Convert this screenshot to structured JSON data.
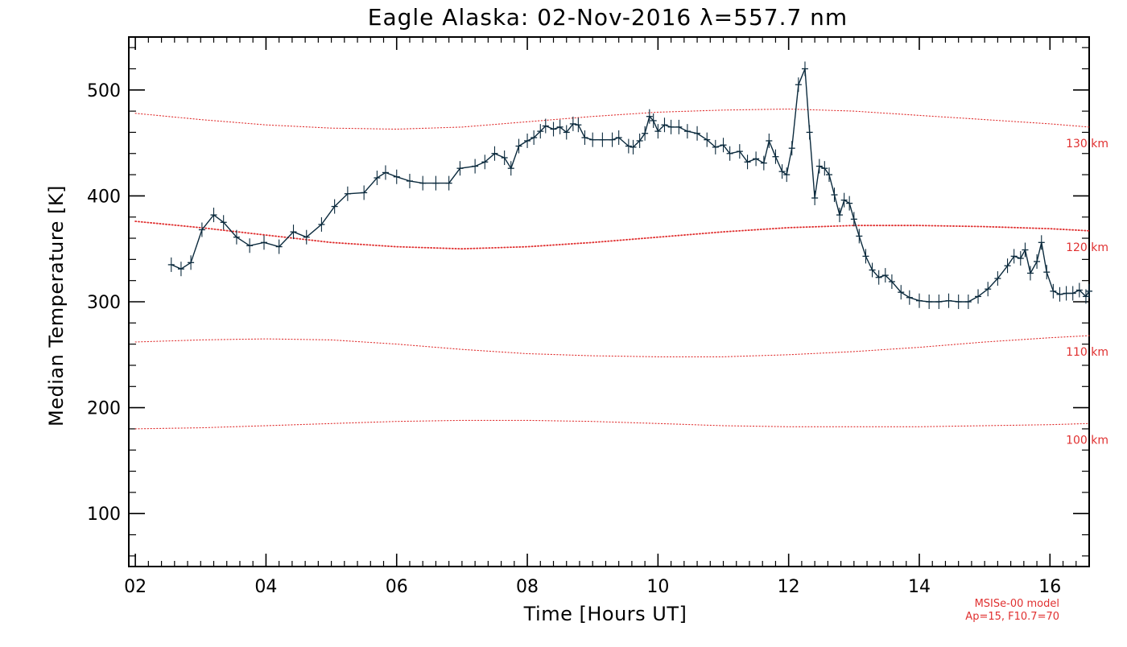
{
  "chart_data": {
    "type": "line",
    "title": "Eagle Alaska: 02-Nov-2016 λ=557.7 nm",
    "xlabel": "Time [Hours UT]",
    "ylabel": "Median Temperature [K]",
    "xlim": [
      1.9,
      16.6
    ],
    "ylim": [
      50,
      550
    ],
    "x_ticks": [
      2,
      4,
      6,
      8,
      10,
      12,
      14,
      16
    ],
    "x_tick_labels": [
      "02",
      "04",
      "06",
      "08",
      "10",
      "12",
      "14",
      "16"
    ],
    "y_ticks": [
      100,
      200,
      300,
      400,
      500
    ],
    "y_tick_labels": [
      "100",
      "200",
      "300",
      "400",
      "500"
    ],
    "colors": {
      "measured": "#0b2a3d",
      "model": "#e03030",
      "axes": "#000000"
    },
    "series": [
      {
        "values": [
          [
            2.55,
            335
          ],
          [
            2.7,
            331
          ],
          [
            2.85,
            337
          ],
          [
            3.02,
            368
          ],
          [
            3.2,
            382
          ],
          [
            3.35,
            375
          ],
          [
            3.55,
            361
          ],
          [
            3.75,
            353
          ],
          [
            3.97,
            356
          ],
          [
            4.2,
            352
          ],
          [
            4.42,
            366
          ],
          [
            4.62,
            361
          ],
          [
            4.85,
            373
          ],
          [
            5.05,
            390
          ],
          [
            5.25,
            402
          ],
          [
            5.5,
            403
          ],
          [
            5.7,
            417
          ],
          [
            5.83,
            422
          ],
          [
            6.0,
            418
          ],
          [
            6.2,
            414
          ],
          [
            6.4,
            412
          ],
          [
            6.6,
            412
          ],
          [
            6.8,
            412
          ],
          [
            6.97,
            426
          ],
          [
            7.2,
            428
          ],
          [
            7.35,
            432
          ],
          [
            7.5,
            440
          ],
          [
            7.65,
            436
          ],
          [
            7.75,
            426
          ],
          [
            7.87,
            447
          ],
          [
            8.0,
            452
          ],
          [
            8.1,
            455
          ],
          [
            8.2,
            461
          ],
          [
            8.28,
            466
          ],
          [
            8.4,
            463
          ],
          [
            8.5,
            465
          ],
          [
            8.6,
            460
          ],
          [
            8.7,
            468
          ],
          [
            8.78,
            467
          ],
          [
            8.88,
            455
          ],
          [
            9.0,
            453
          ],
          [
            9.15,
            453
          ],
          [
            9.3,
            453
          ],
          [
            9.4,
            455
          ],
          [
            9.55,
            447
          ],
          [
            9.62,
            446
          ],
          [
            9.72,
            452
          ],
          [
            9.8,
            459
          ],
          [
            9.87,
            475
          ],
          [
            9.93,
            471
          ],
          [
            10.0,
            461
          ],
          [
            10.1,
            467
          ],
          [
            10.2,
            465
          ],
          [
            10.32,
            465
          ],
          [
            10.45,
            461
          ],
          [
            10.6,
            459
          ],
          [
            10.75,
            453
          ],
          [
            10.88,
            446
          ],
          [
            11.0,
            448
          ],
          [
            11.1,
            440
          ],
          [
            11.25,
            442
          ],
          [
            11.37,
            432
          ],
          [
            11.5,
            435
          ],
          [
            11.62,
            431
          ],
          [
            11.7,
            452
          ],
          [
            11.8,
            437
          ],
          [
            11.9,
            423
          ],
          [
            11.97,
            420
          ],
          [
            12.05,
            445
          ],
          [
            12.15,
            505
          ],
          [
            12.25,
            520
          ],
          [
            12.32,
            460
          ],
          [
            12.4,
            398
          ],
          [
            12.47,
            428
          ],
          [
            12.55,
            426
          ],
          [
            12.62,
            420
          ],
          [
            12.7,
            401
          ],
          [
            12.78,
            382
          ],
          [
            12.85,
            396
          ],
          [
            12.93,
            393
          ],
          [
            13.0,
            378
          ],
          [
            13.08,
            362
          ],
          [
            13.18,
            343
          ],
          [
            13.28,
            330
          ],
          [
            13.38,
            323
          ],
          [
            13.48,
            325
          ],
          [
            13.58,
            319
          ],
          [
            13.72,
            309
          ],
          [
            13.85,
            304
          ],
          [
            14.0,
            301
          ],
          [
            14.15,
            300
          ],
          [
            14.3,
            300
          ],
          [
            14.45,
            301
          ],
          [
            14.6,
            300
          ],
          [
            14.75,
            300
          ],
          [
            14.9,
            305
          ],
          [
            15.05,
            312
          ],
          [
            15.2,
            322
          ],
          [
            15.35,
            334
          ],
          [
            15.45,
            343
          ],
          [
            15.55,
            341
          ],
          [
            15.62,
            349
          ],
          [
            15.7,
            327
          ],
          [
            15.8,
            338
          ],
          [
            15.87,
            356
          ],
          [
            15.95,
            328
          ],
          [
            16.05,
            310
          ],
          [
            16.15,
            307
          ],
          [
            16.25,
            308
          ],
          [
            16.35,
            308
          ],
          [
            16.45,
            311
          ],
          [
            16.55,
            305
          ],
          [
            16.6,
            310
          ]
        ]
      }
    ],
    "model_series": [
      {
        "name": "130 km",
        "values": [
          [
            2.0,
            478
          ],
          [
            3.0,
            472
          ],
          [
            4.0,
            467
          ],
          [
            5.0,
            464
          ],
          [
            6.0,
            463
          ],
          [
            7.0,
            465
          ],
          [
            8.0,
            470
          ],
          [
            9.0,
            475
          ],
          [
            10.0,
            479
          ],
          [
            11.0,
            481
          ],
          [
            12.0,
            482
          ],
          [
            13.0,
            480
          ],
          [
            14.0,
            476
          ],
          [
            15.0,
            472
          ],
          [
            16.0,
            468
          ],
          [
            16.6,
            465
          ]
        ]
      },
      {
        "name": "120 km",
        "values": [
          [
            2.0,
            376
          ],
          [
            3.0,
            370
          ],
          [
            4.0,
            363
          ],
          [
            5.0,
            356
          ],
          [
            6.0,
            352
          ],
          [
            7.0,
            350
          ],
          [
            8.0,
            352
          ],
          [
            9.0,
            356
          ],
          [
            10.0,
            361
          ],
          [
            11.0,
            366
          ],
          [
            12.0,
            370
          ],
          [
            13.0,
            372
          ],
          [
            14.0,
            372
          ],
          [
            15.0,
            371
          ],
          [
            16.0,
            369
          ],
          [
            16.6,
            367
          ]
        ]
      },
      {
        "name": "110 km",
        "values": [
          [
            2.0,
            262
          ],
          [
            3.0,
            264
          ],
          [
            4.0,
            265
          ],
          [
            5.0,
            264
          ],
          [
            6.0,
            260
          ],
          [
            7.0,
            255
          ],
          [
            8.0,
            251
          ],
          [
            9.0,
            249
          ],
          [
            10.0,
            248
          ],
          [
            11.0,
            248
          ],
          [
            12.0,
            250
          ],
          [
            13.0,
            253
          ],
          [
            14.0,
            257
          ],
          [
            15.0,
            262
          ],
          [
            16.0,
            266
          ],
          [
            16.6,
            268
          ]
        ]
      },
      {
        "name": "100 km",
        "values": [
          [
            2.0,
            180
          ],
          [
            3.0,
            181
          ],
          [
            4.0,
            183
          ],
          [
            5.0,
            185
          ],
          [
            6.0,
            187
          ],
          [
            7.0,
            188
          ],
          [
            8.0,
            188
          ],
          [
            9.0,
            187
          ],
          [
            10.0,
            185
          ],
          [
            11.0,
            183
          ],
          [
            12.0,
            182
          ],
          [
            13.0,
            182
          ],
          [
            14.0,
            182
          ],
          [
            15.0,
            183
          ],
          [
            16.0,
            184
          ],
          [
            16.6,
            185
          ]
        ]
      }
    ],
    "grid": false,
    "notes": [
      "MSISe-00 model",
      "Ap=15, F10.7=70"
    ]
  }
}
